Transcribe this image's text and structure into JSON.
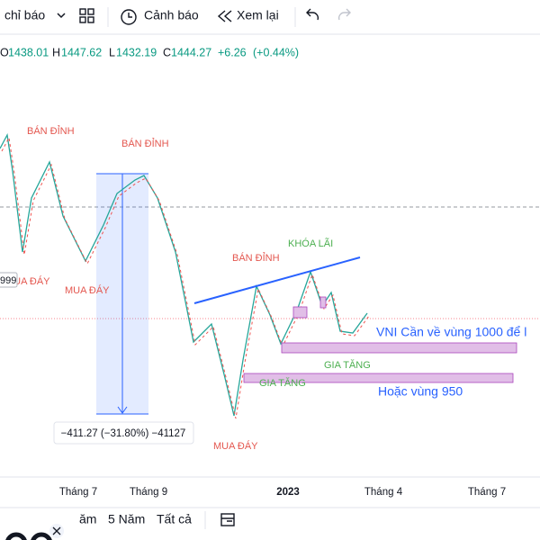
{
  "toolbar": {
    "indicators": "chỉ báo",
    "alerts": "Cảnh báo",
    "replay": "Xem lại"
  },
  "ohlc": {
    "open_label": "O",
    "open": 1438.01,
    "high_label": "H",
    "high": 1447.62,
    "low_label": "L",
    "low": 1432.19,
    "close_label": "C",
    "close": 1444.27,
    "change": "+6.26",
    "change_percent": "(+0.44%)"
  },
  "annotations": {
    "sell_top_1": "BÁN ĐỈNH",
    "sell_top_2": "BÁN ĐỈNH",
    "sell_top_3": "BÁN ĐỈNH",
    "buy_bottom_1": "MUA ĐÁY",
    "buy_bottom_2": "MUA ĐÁY",
    "buy_bottom_3": "MUA ĐÁY",
    "take_profit": "KHÓA LÃI",
    "add_1": "GIA TĂNG",
    "add_2": "GIA TĂNG",
    "target_1": "VNI Cần về vùng 1000 để l",
    "target_2": "Hoặc vùng 950",
    "price_tag": "999",
    "measure": "−411.27 (−31.80%) −41127"
  },
  "x_axis": {
    "labels": [
      "Tháng 7",
      "Tháng 9",
      "2023",
      "Tháng 4",
      "Tháng 7"
    ]
  },
  "ranges": [
    "ăm",
    "5 Năm",
    "Tất cả"
  ]
}
